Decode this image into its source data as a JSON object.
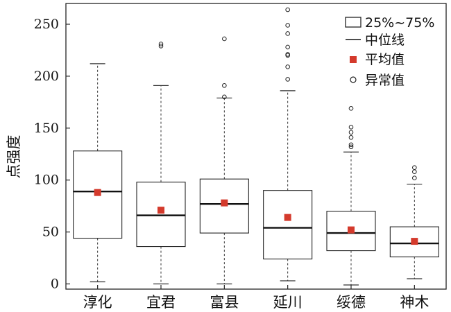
{
  "chart_data": {
    "type": "box",
    "title": "",
    "xlabel": "",
    "ylabel": "点强度",
    "ylim": [
      -5,
      270
    ],
    "yticks": [
      0,
      50,
      100,
      150,
      200,
      250
    ],
    "grid": false,
    "legend_position": "top-right",
    "legend": {
      "box": "25%~75%",
      "median": "中位线",
      "mean": "平均值",
      "outlier": "异常值"
    },
    "colors": {
      "mean": "#d43a2c",
      "box_stroke": "#222222",
      "median": "#111111",
      "whisker": "#333333"
    },
    "categories": [
      "淳化",
      "宜君",
      "富县",
      "延川",
      "绥德",
      "神木"
    ],
    "boxes": [
      {
        "name": "淳化",
        "min": 2,
        "q1": 44,
        "median": 89,
        "q3": 128,
        "max": 212,
        "mean": 88,
        "outliers": []
      },
      {
        "name": "宜君",
        "min": 0,
        "q1": 36,
        "median": 66,
        "q3": 98,
        "max": 191,
        "mean": 71,
        "outliers": [
          229,
          231
        ]
      },
      {
        "name": "富县",
        "min": 0,
        "q1": 49,
        "median": 77,
        "q3": 101,
        "max": 179,
        "mean": 78,
        "outliers": [
          180,
          191,
          236
        ]
      },
      {
        "name": "延川",
        "min": 3,
        "q1": 24,
        "median": 54,
        "q3": 90,
        "max": 186,
        "mean": 64,
        "outliers": [
          197,
          209,
          220,
          221,
          228,
          241,
          249,
          264
        ]
      },
      {
        "name": "绥德",
        "min": -1,
        "q1": 32,
        "median": 49,
        "q3": 70,
        "max": 127,
        "mean": 52,
        "outliers": [
          132,
          134,
          141,
          146,
          151,
          169
        ]
      },
      {
        "name": "神木",
        "min": 5,
        "q1": 26,
        "median": 39,
        "q3": 55,
        "max": 96,
        "mean": 41,
        "outliers": [
          102,
          108,
          112
        ]
      }
    ]
  }
}
